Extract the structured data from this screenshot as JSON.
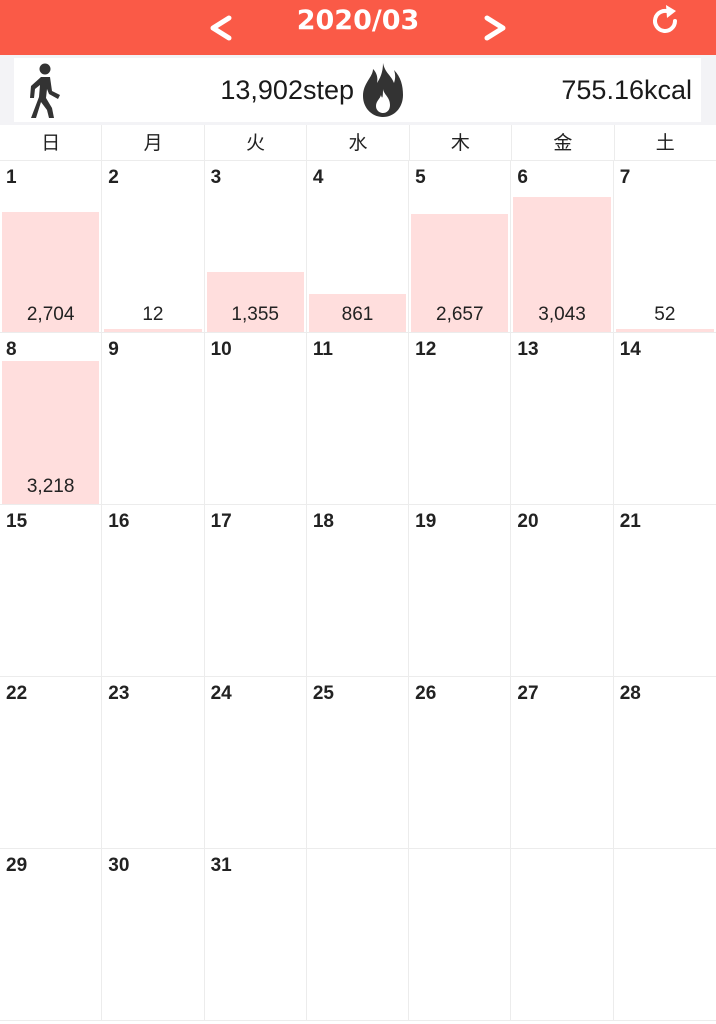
{
  "header": {
    "month_title": "2020/03",
    "prev_label": "<",
    "next_label": ">",
    "refresh_icon": "refresh-icon",
    "bg_color": "#fa5a47"
  },
  "summary": {
    "walk_icon": "walk-icon",
    "steps": "13,902step",
    "flame_icon": "flame-icon",
    "kcal": "755.16kcal"
  },
  "weekdays": [
    "日",
    "月",
    "火",
    "水",
    "木",
    "金",
    "土"
  ],
  "bar_color": "#ffdedd",
  "calendar": {
    "days_in_month": 31,
    "first_weekday_index": 0,
    "steps_scale_max": 3600,
    "days": [
      {
        "day": "1",
        "steps": "2,704",
        "value": 2704
      },
      {
        "day": "2",
        "steps": "12",
        "value": 12
      },
      {
        "day": "3",
        "steps": "1,355",
        "value": 1355
      },
      {
        "day": "4",
        "steps": "861",
        "value": 861
      },
      {
        "day": "5",
        "steps": "2,657",
        "value": 2657
      },
      {
        "day": "6",
        "steps": "3,043",
        "value": 3043
      },
      {
        "day": "7",
        "steps": "52",
        "value": 52
      },
      {
        "day": "8",
        "steps": "3,218",
        "value": 3218
      },
      {
        "day": "9",
        "steps": "",
        "value": 0
      },
      {
        "day": "10",
        "steps": "",
        "value": 0
      },
      {
        "day": "11",
        "steps": "",
        "value": 0
      },
      {
        "day": "12",
        "steps": "",
        "value": 0
      },
      {
        "day": "13",
        "steps": "",
        "value": 0
      },
      {
        "day": "14",
        "steps": "",
        "value": 0
      },
      {
        "day": "15",
        "steps": "",
        "value": 0
      },
      {
        "day": "16",
        "steps": "",
        "value": 0
      },
      {
        "day": "17",
        "steps": "",
        "value": 0
      },
      {
        "day": "18",
        "steps": "",
        "value": 0
      },
      {
        "day": "19",
        "steps": "",
        "value": 0
      },
      {
        "day": "20",
        "steps": "",
        "value": 0
      },
      {
        "day": "21",
        "steps": "",
        "value": 0
      },
      {
        "day": "22",
        "steps": "",
        "value": 0
      },
      {
        "day": "23",
        "steps": "",
        "value": 0
      },
      {
        "day": "24",
        "steps": "",
        "value": 0
      },
      {
        "day": "25",
        "steps": "",
        "value": 0
      },
      {
        "day": "26",
        "steps": "",
        "value": 0
      },
      {
        "day": "27",
        "steps": "",
        "value": 0
      },
      {
        "day": "28",
        "steps": "",
        "value": 0
      },
      {
        "day": "29",
        "steps": "",
        "value": 0
      },
      {
        "day": "30",
        "steps": "",
        "value": 0
      },
      {
        "day": "31",
        "steps": "",
        "value": 0
      }
    ]
  }
}
